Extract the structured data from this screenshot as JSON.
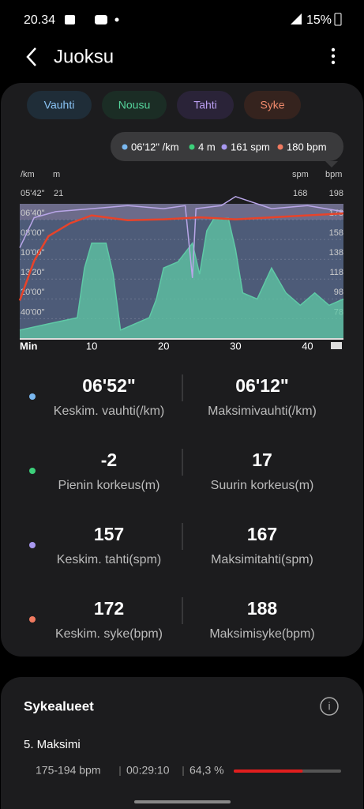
{
  "status": {
    "time": "20.34",
    "battery": "15%"
  },
  "header": {
    "title": "Juoksu"
  },
  "tabs": [
    "Vauhti",
    "Nousu",
    "Tahti",
    "Syke"
  ],
  "tooltip": [
    "06'12\" /km",
    "4 m",
    "161 spm",
    "180 bpm"
  ],
  "chart_data": {
    "type": "line",
    "x_label": "Min",
    "xlim": [
      0,
      45
    ],
    "xticks": [
      10,
      20,
      30,
      40
    ],
    "pace_unit": "/km",
    "pace_ticks": [
      "05'42\"",
      "06'40\"",
      "08'00\"",
      "10'00\"",
      "13'20\"",
      "20'00\"",
      "40'00\""
    ],
    "elevation_unit": "m",
    "elevation_ylim": [
      -2.3,
      21
    ],
    "elevation_yticks": [
      21
    ],
    "cadence_unit": "spm",
    "cadence_ylim": [
      120,
      168
    ],
    "cadence_yticks": [
      168
    ],
    "y_unit": "bpm",
    "ylim": [
      52,
      198
    ],
    "yticks": [
      198,
      178,
      158,
      138,
      118,
      98,
      78
    ],
    "grid": true,
    "series": [
      {
        "name": "Nousu",
        "axis": "elevation",
        "color": "#5fc9a6",
        "x": [
          0,
          4,
          8,
          9,
          10,
          12,
          13,
          14,
          18,
          19,
          20,
          22,
          24,
          25,
          26,
          27,
          29,
          30,
          31,
          33,
          35,
          37,
          39,
          41,
          43,
          45
        ],
        "values": [
          -1,
          0,
          1,
          9,
          13,
          13,
          8,
          -1,
          1,
          4,
          9,
          10,
          13,
          8,
          15,
          17,
          17,
          12,
          5,
          4,
          9,
          5,
          3,
          5,
          3,
          4
        ]
      },
      {
        "name": "Tahti",
        "axis": "cadence",
        "color": "#b9a6e8",
        "x": [
          0,
          2,
          5,
          10,
          15,
          20,
          23,
          24,
          24.5,
          28,
          30,
          35,
          40,
          45
        ],
        "values": [
          150,
          160,
          162,
          163,
          164,
          163,
          164,
          140,
          163,
          164,
          167,
          163,
          164,
          162
        ]
      },
      {
        "name": "Syke",
        "axis": "bpm",
        "color": "#e8432a",
        "x": [
          0,
          2,
          4,
          7,
          10,
          15,
          20,
          25,
          30,
          35,
          40,
          45
        ],
        "values": [
          90,
          130,
          155,
          168,
          176,
          171,
          172,
          174,
          172,
          174,
          176,
          178
        ]
      }
    ]
  },
  "stats": [
    {
      "color": "#7ab8f0",
      "left": {
        "value": "06'52\"",
        "label": "Keskim. vauhti(/km)"
      },
      "right": {
        "value": "06'12\"",
        "label": "Maksimivauhti(/km)"
      }
    },
    {
      "color": "#3ccf7a",
      "left": {
        "value": "-2",
        "label": "Pienin korkeus(m)"
      },
      "right": {
        "value": "17",
        "label": "Suurin korkeus(m)"
      }
    },
    {
      "color": "#a898f0",
      "left": {
        "value": "157",
        "label": "Keskim. tahti(spm)"
      },
      "right": {
        "value": "167",
        "label": "Maksimitahti(spm)"
      }
    },
    {
      "color": "#f07a60",
      "left": {
        "value": "172",
        "label": "Keskim. syke(bpm)"
      },
      "right": {
        "value": "188",
        "label": "Maksimisyke(bpm)"
      }
    }
  ],
  "zones": {
    "title": "Sykealueet",
    "items": [
      {
        "name": "5. Maksimi",
        "range": "175-194 bpm",
        "time": "00:29:10",
        "value": 64.3,
        "value_label": "64,3 %"
      }
    ]
  }
}
